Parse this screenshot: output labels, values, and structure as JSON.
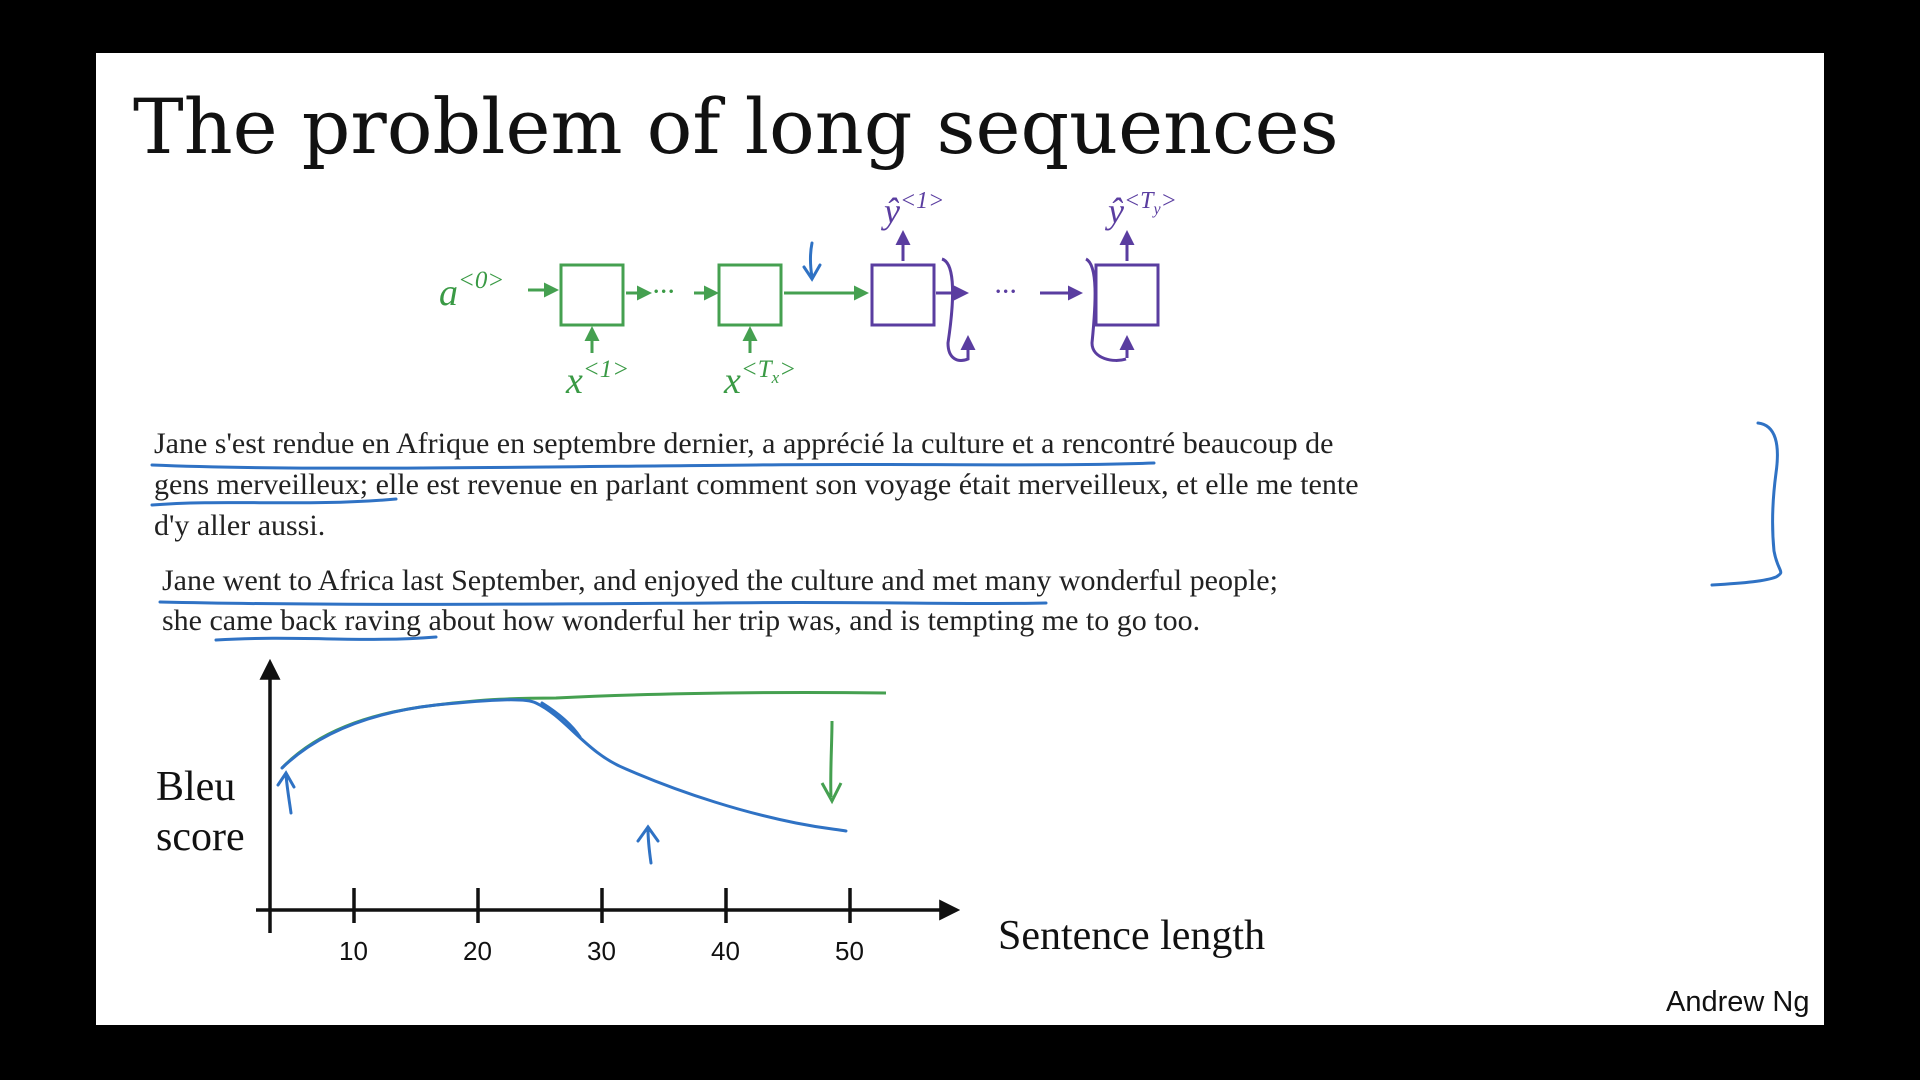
{
  "title": "The problem of long sequences",
  "rnn": {
    "a0": "a",
    "a0_sup": "<0>",
    "x1": "x",
    "x1_sup": "<1>",
    "xT": "x",
    "xT_sup": "<T",
    "xT_sub": "x",
    "xT_close": ">",
    "y1": "ŷ",
    "y1_sup": "<1>",
    "yT": "ŷ",
    "yT_sup": "<T",
    "yT_sub": "y",
    "yT_close": ">",
    "dots": "···"
  },
  "french": [
    "Jane s'est rendue en Afrique en septembre dernier, a apprécié la culture et a rencontré beaucoup de",
    "gens merveilleux; elle est revenue en parlant comment son voyage était merveilleux, et elle me tente",
    "d'y aller aussi."
  ],
  "english": [
    "Jane went to Africa last September, and enjoyed the culture and met many wonderful people;",
    "she came back raving about how wonderful her trip was, and is tempting me to go too."
  ],
  "plot": {
    "ylabel_line1": "Bleu",
    "ylabel_line2": "score",
    "xlabel": "Sentence length",
    "ticks": [
      "10",
      "20",
      "30",
      "40",
      "50"
    ]
  },
  "author": "Andrew Ng",
  "colors": {
    "green": "#45a050",
    "purple": "#5a3da0",
    "blue": "#2f72c4"
  }
}
